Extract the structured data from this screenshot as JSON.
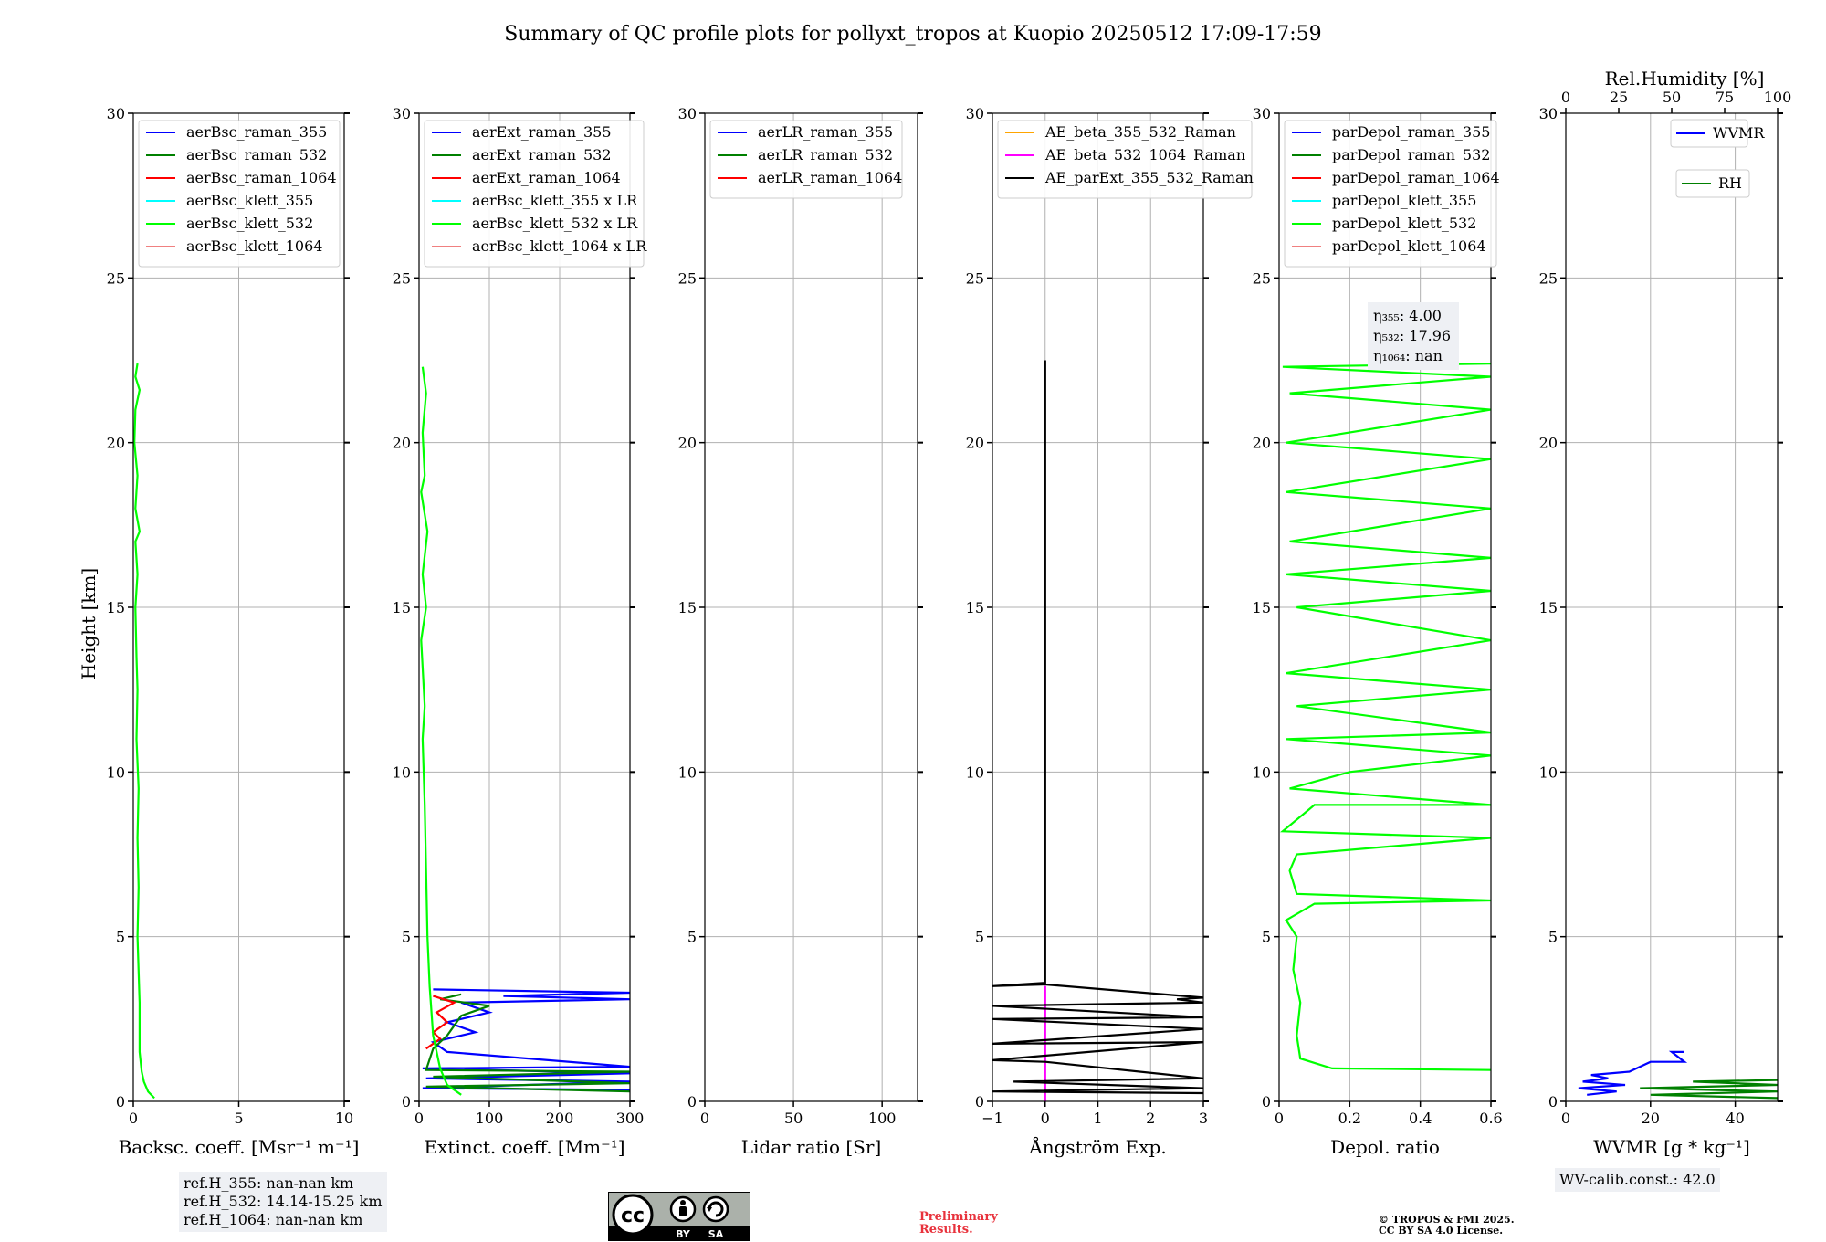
{
  "title": "Summary of QC profile plots for pollyxt_tropos at Kuopio 20250512 17:09-17:59",
  "ylabel": "Height [km]",
  "chart_data": [
    {
      "type": "line",
      "id": "backscatter",
      "xlabel": "Backsc. coeff. [Msr⁻¹ m⁻¹]",
      "xlim": [
        0,
        10
      ],
      "xticks": [
        0,
        5,
        10
      ],
      "ylim": [
        0,
        30
      ],
      "yticks": [
        0,
        5,
        10,
        15,
        20,
        25,
        30
      ],
      "grid": true,
      "legend": "top-left",
      "series": [
        {
          "name": "aerBsc_raman_355",
          "color": "#0000ff",
          "points": []
        },
        {
          "name": "aerBsc_raman_532",
          "color": "#008000",
          "points": []
        },
        {
          "name": "aerBsc_raman_1064",
          "color": "#ff0000",
          "points": []
        },
        {
          "name": "aerBsc_klett_355",
          "color": "#00ffff",
          "points": []
        },
        {
          "name": "aerBsc_klett_532",
          "color": "#00ff00",
          "points": [
            [
              1.0,
              0.1
            ],
            [
              0.7,
              0.3
            ],
            [
              0.5,
              0.6
            ],
            [
              0.4,
              0.9
            ],
            [
              0.3,
              1.5
            ],
            [
              0.3,
              3
            ],
            [
              0.2,
              5
            ],
            [
              0.25,
              6.5
            ],
            [
              0.2,
              8
            ],
            [
              0.25,
              9.5
            ],
            [
              0.15,
              11
            ],
            [
              0.2,
              12.5
            ],
            [
              0.15,
              13.5
            ],
            [
              0.1,
              15
            ],
            [
              0.2,
              16
            ],
            [
              0.1,
              17
            ],
            [
              0.3,
              17.3
            ],
            [
              0.1,
              18
            ],
            [
              0.2,
              19
            ],
            [
              0.05,
              20
            ],
            [
              0.1,
              21
            ],
            [
              0.3,
              21.6
            ],
            [
              0.1,
              22
            ],
            [
              0.2,
              22.4
            ]
          ]
        },
        {
          "name": "aerBsc_klett_1064",
          "color": "#f08080",
          "points": []
        }
      ]
    },
    {
      "type": "line",
      "id": "extinction",
      "xlabel": "Extinct. coeff. [Mm⁻¹]",
      "xlim": [
        0,
        300
      ],
      "xticks": [
        0,
        100,
        200,
        300
      ],
      "ylim": [
        0,
        30
      ],
      "yticks": [
        0,
        5,
        10,
        15,
        20,
        25,
        30
      ],
      "grid": true,
      "legend": "top-left",
      "series": [
        {
          "name": "aerExt_raman_355",
          "color": "#0000ff",
          "points": [
            [
              300,
              0.35
            ],
            [
              5,
              0.4
            ],
            [
              300,
              0.6
            ],
            [
              10,
              0.7
            ],
            [
              300,
              0.85
            ],
            [
              5,
              1.0
            ],
            [
              300,
              1.05
            ],
            [
              40,
              1.5
            ],
            [
              20,
              1.8
            ],
            [
              80,
              2.1
            ],
            [
              40,
              2.4
            ],
            [
              100,
              2.7
            ],
            [
              60,
              3.0
            ],
            [
              300,
              3.1
            ],
            [
              120,
              3.2
            ],
            [
              300,
              3.3
            ],
            [
              20,
              3.4
            ]
          ]
        },
        {
          "name": "aerExt_raman_532",
          "color": "#008000",
          "points": [
            [
              300,
              0.3
            ],
            [
              10,
              0.45
            ],
            [
              300,
              0.55
            ],
            [
              20,
              0.75
            ],
            [
              300,
              0.9
            ],
            [
              10,
              0.95
            ],
            [
              20,
              1.6
            ],
            [
              40,
              2.0
            ],
            [
              60,
              2.6
            ],
            [
              100,
              2.9
            ],
            [
              30,
              3.1
            ],
            [
              60,
              3.25
            ]
          ]
        },
        {
          "name": "aerExt_raman_1064",
          "color": "#ff0000",
          "points": [
            [
              10,
              1.6
            ],
            [
              30,
              1.9
            ],
            [
              20,
              2.1
            ],
            [
              40,
              2.4
            ],
            [
              25,
              2.7
            ],
            [
              50,
              3.0
            ],
            [
              20,
              3.2
            ]
          ]
        },
        {
          "name": "aerBsc_klett_355 x LR",
          "color": "#00ffff",
          "points": []
        },
        {
          "name": "aerBsc_klett_532 x LR",
          "color": "#00ff00",
          "points": [
            [
              60,
              0.2
            ],
            [
              40,
              0.5
            ],
            [
              30,
              1.0
            ],
            [
              20,
              2.0
            ],
            [
              15,
              3.5
            ],
            [
              12,
              5.0
            ],
            [
              10,
              7.0
            ],
            [
              8,
              9.0
            ],
            [
              5,
              11
            ],
            [
              8,
              12
            ],
            [
              3,
              14
            ],
            [
              10,
              15
            ],
            [
              5,
              16
            ],
            [
              12,
              17.3
            ],
            [
              3,
              18.5
            ],
            [
              8,
              19
            ],
            [
              5,
              20.3
            ],
            [
              10,
              21.5
            ],
            [
              5,
              22.3
            ]
          ]
        },
        {
          "name": "aerBsc_klett_1064 x LR",
          "color": "#f08080",
          "points": []
        }
      ]
    },
    {
      "type": "line",
      "id": "lidar-ratio",
      "xlabel": "Lidar ratio [Sr]",
      "xlim": [
        0,
        120
      ],
      "xticks": [
        0,
        50,
        100
      ],
      "ylim": [
        0,
        30
      ],
      "yticks": [
        0,
        5,
        10,
        15,
        20,
        25,
        30
      ],
      "grid": true,
      "legend": "top-left",
      "series": [
        {
          "name": "aerLR_raman_355",
          "color": "#0000ff",
          "points": []
        },
        {
          "name": "aerLR_raman_532",
          "color": "#008000",
          "points": []
        },
        {
          "name": "aerLR_raman_1064",
          "color": "#ff0000",
          "points": []
        }
      ]
    },
    {
      "type": "line",
      "id": "angstrom",
      "xlabel": "Ångström Exp.",
      "xlim": [
        -1,
        3
      ],
      "xticks": [
        -1,
        0,
        1,
        2,
        3
      ],
      "ylim": [
        0,
        30
      ],
      "yticks": [
        0,
        5,
        10,
        15,
        20,
        25,
        30
      ],
      "grid": true,
      "legend": "top-left",
      "series": [
        {
          "name": "AE_beta_355_532_Raman",
          "color": "#ffa500",
          "points": []
        },
        {
          "name": "AE_beta_532_1064_Raman",
          "color": "#ff00ff",
          "points": [
            [
              0,
              0
            ],
            [
              0,
              3.5
            ]
          ]
        },
        {
          "name": "AE_parExt_355_532_Raman",
          "color": "#000000",
          "points": [
            [
              3,
              0.25
            ],
            [
              -1,
              0.3
            ],
            [
              3,
              0.4
            ],
            [
              -0.6,
              0.6
            ],
            [
              3,
              0.7
            ],
            [
              0,
              1.2
            ],
            [
              -1,
              1.25
            ],
            [
              3,
              1.8
            ],
            [
              -1,
              1.75
            ],
            [
              3,
              2.2
            ],
            [
              -1,
              2.5
            ],
            [
              3,
              2.55
            ],
            [
              -1,
              2.9
            ],
            [
              3,
              3.0
            ],
            [
              2.5,
              3.1
            ],
            [
              3,
              3.15
            ],
            [
              0,
              3.55
            ],
            [
              -1,
              3.5
            ],
            [
              0,
              3.6
            ],
            [
              0,
              22.5
            ]
          ]
        }
      ]
    },
    {
      "type": "line",
      "id": "depolarization",
      "xlabel": "Depol. ratio",
      "xlim": [
        0,
        0.6
      ],
      "xticks": [
        0.0,
        0.2,
        0.4,
        0.6
      ],
      "ylim": [
        0,
        30
      ],
      "yticks": [
        0,
        5,
        10,
        15,
        20,
        25,
        30
      ],
      "grid": true,
      "legend": "top-left",
      "series": [
        {
          "name": "parDepol_raman_355",
          "color": "#0000ff",
          "points": []
        },
        {
          "name": "parDepol_raman_532",
          "color": "#008000",
          "points": []
        },
        {
          "name": "parDepol_raman_1064",
          "color": "#ff0000",
          "points": []
        },
        {
          "name": "parDepol_klett_355",
          "color": "#00ffff",
          "points": []
        },
        {
          "name": "parDepol_klett_532",
          "color": "#00ff00",
          "points": [
            [
              0.6,
              0.95
            ],
            [
              0.15,
              1.0
            ],
            [
              0.06,
              1.3
            ],
            [
              0.05,
              2
            ],
            [
              0.06,
              3
            ],
            [
              0.04,
              4
            ],
            [
              0.05,
              5
            ],
            [
              0.02,
              5.5
            ],
            [
              0.1,
              6.0
            ],
            [
              0.6,
              6.1
            ],
            [
              0.05,
              6.3
            ],
            [
              0.03,
              7
            ],
            [
              0.05,
              7.5
            ],
            [
              0.6,
              8.0
            ],
            [
              0.01,
              8.2
            ],
            [
              0.1,
              9.0
            ],
            [
              0.6,
              9.0
            ],
            [
              0.03,
              9.5
            ],
            [
              0.2,
              10
            ],
            [
              0.6,
              10.5
            ],
            [
              0.02,
              11
            ],
            [
              0.6,
              11.2
            ],
            [
              0.05,
              12
            ],
            [
              0.6,
              12.5
            ],
            [
              0.02,
              13
            ],
            [
              0.6,
              14
            ],
            [
              0.05,
              15
            ],
            [
              0.6,
              15.5
            ],
            [
              0.02,
              16
            ],
            [
              0.6,
              16.5
            ],
            [
              0.03,
              17
            ],
            [
              0.6,
              18
            ],
            [
              0.02,
              18.5
            ],
            [
              0.6,
              19.5
            ],
            [
              0.02,
              20
            ],
            [
              0.6,
              21
            ],
            [
              0.03,
              21.5
            ],
            [
              0.6,
              22
            ],
            [
              0.01,
              22.3
            ],
            [
              0.6,
              22.4
            ]
          ]
        },
        {
          "name": "parDepol_klett_1064",
          "color": "#f08080",
          "points": []
        }
      ],
      "annotation": [
        "η₃₅₅: 4.00",
        "η₅₃₂: 17.96",
        "η₁₀₆₄: nan"
      ]
    },
    {
      "type": "line",
      "id": "water-vapor",
      "xlabel": "WVMR [g * kg⁻¹]",
      "xlim": [
        0,
        50
      ],
      "xticks": [
        0,
        20,
        40
      ],
      "x2label": "Rel.Humidity [%]",
      "x2lim": [
        0,
        100
      ],
      "x2ticks": [
        0,
        25,
        50,
        75,
        100
      ],
      "ylim": [
        0,
        30
      ],
      "yticks": [
        0,
        5,
        10,
        15,
        20,
        25,
        30
      ],
      "grid": true,
      "series": [
        {
          "name": "WVMR",
          "color": "#0000ff",
          "points": [
            [
              5,
              0.2
            ],
            [
              12,
              0.3
            ],
            [
              3,
              0.4
            ],
            [
              14,
              0.5
            ],
            [
              4,
              0.6
            ],
            [
              10,
              0.7
            ],
            [
              6,
              0.8
            ],
            [
              15,
              0.9
            ],
            [
              20,
              1.2
            ],
            [
              28,
              1.2
            ],
            [
              25,
              1.5
            ],
            [
              28,
              1.5
            ]
          ]
        },
        {
          "name": "RH",
          "color": "#008000",
          "axis": "x2",
          "points": [
            [
              100,
              0.1
            ],
            [
              40,
              0.2
            ],
            [
              100,
              0.3
            ],
            [
              35,
              0.4
            ],
            [
              100,
              0.5
            ],
            [
              60,
              0.6
            ],
            [
              100,
              0.65
            ]
          ]
        }
      ]
    }
  ],
  "boxes": {
    "ref_heights": [
      "ref.H_355: nan-nan km",
      "ref.H_532: 14.14-15.25 km",
      "ref.H_1064: nan-nan km"
    ],
    "wv_calib": "WV-calib.const.: 42.0"
  },
  "footer": {
    "preliminary": [
      "Preliminary",
      "Results."
    ],
    "copyright": [
      "© TROPOS & FMI 2025.",
      "CC BY SA 4.0 License."
    ],
    "badge": {
      "cc": "cc",
      "by": "BY",
      "sa": "SA"
    }
  }
}
